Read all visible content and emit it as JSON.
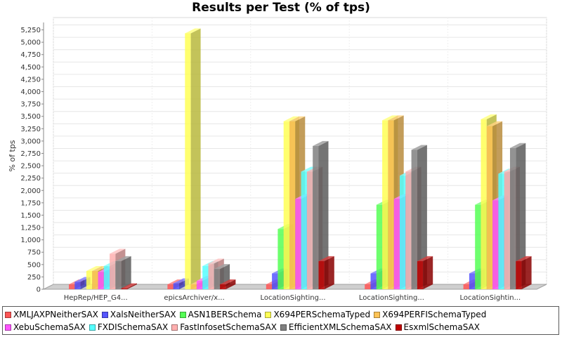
{
  "chart_data": {
    "type": "bar",
    "title": "Results per Test (% of tps)",
    "xlabel": "",
    "ylabel": "% of tps",
    "ylim": [
      0,
      5400
    ],
    "yticks": [
      0,
      250,
      500,
      750,
      1000,
      1250,
      1500,
      1750,
      2000,
      2250,
      2500,
      2750,
      3000,
      3250,
      3500,
      3750,
      4000,
      4250,
      4500,
      4750,
      5000,
      5250
    ],
    "ytick_labels": [
      "0",
      "250",
      "500",
      "750",
      "1,000",
      "1,250",
      "1,500",
      "1,750",
      "2,000",
      "2,250",
      "2,500",
      "2,750",
      "3,000",
      "3,250",
      "3,500",
      "3,750",
      "4,000",
      "4,250",
      "4,500",
      "4,750",
      "5,000",
      "5,250"
    ],
    "grid": true,
    "legend_position": "bottom",
    "categories": [
      "HepRep/HEP_G4...",
      "epicsArchiver/x...",
      "LocationSighting...",
      "LocationSighting...",
      "LocationSightin..."
    ],
    "series": [
      {
        "name": "XMLJAXPNeitherSAX",
        "color": "#ff5555",
        "values": [
          100,
          100,
          100,
          100,
          100
        ]
      },
      {
        "name": "XalsNeitherSAX",
        "color": "#5555ff",
        "values": [
          150,
          120,
          320,
          320,
          320
        ]
      },
      {
        "name": "ASN1BERSchema",
        "color": "#55ff55",
        "values": [
          0,
          0,
          1220,
          1710,
          1710
        ]
      },
      {
        "name": "X694PERSchemaTyped",
        "color": "#ffff55",
        "values": [
          370,
          5180,
          3400,
          3420,
          3440
        ]
      },
      {
        "name": "X694PERFISchemaTyped",
        "color": "#ffc355",
        "values": [
          370,
          100,
          3400,
          3420,
          3300
        ]
      },
      {
        "name": "XebuSchemaSAX",
        "color": "#ff55ff",
        "values": [
          350,
          170,
          1830,
          1830,
          1800
        ]
      },
      {
        "name": "FXDISchemaSAX",
        "color": "#55ffff",
        "values": [
          470,
          470,
          2380,
          2300,
          2340
        ]
      },
      {
        "name": "FastInfosetSchemaSAX",
        "color": "#ffafaf",
        "values": [
          720,
          520,
          2380,
          2380,
          2380
        ]
      },
      {
        "name": "EfficientXMLSchemaSAX",
        "color": "#808080",
        "values": [
          570,
          410,
          2900,
          2820,
          2860
        ]
      },
      {
        "name": "EsxmlSchemaSAX",
        "color": "#c00000",
        "values": [
          20,
          100,
          570,
          570,
          570
        ]
      }
    ]
  }
}
